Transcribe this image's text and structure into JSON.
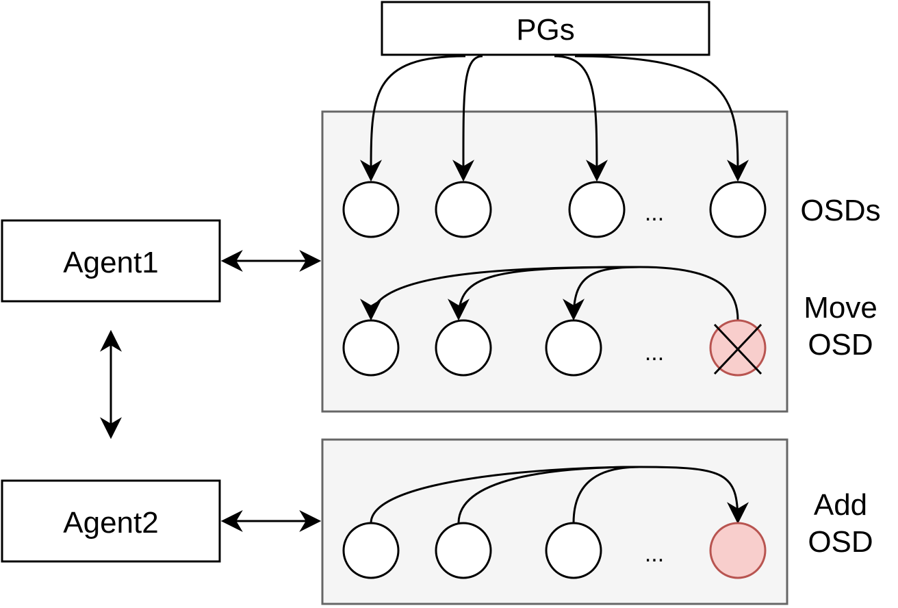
{
  "colors": {
    "stroke": "#000000",
    "panel_fill": "#f5f5f5",
    "panel_stroke": "#666666",
    "highlight_fill": "#f8cecc",
    "highlight_stroke": "#b85450"
  },
  "pgs": {
    "label": "PGs"
  },
  "agents": [
    {
      "label": "Agent1"
    },
    {
      "label": "Agent2"
    }
  ],
  "rows": [
    {
      "label_lines": [
        "OSDs"
      ],
      "ellipsis": "..."
    },
    {
      "label_lines": [
        "Move",
        "OSD"
      ],
      "ellipsis": "..."
    },
    {
      "label_lines": [
        "Add",
        "OSD"
      ],
      "ellipsis": "..."
    }
  ],
  "icons": {
    "remove_marker": "x-cross-icon"
  }
}
